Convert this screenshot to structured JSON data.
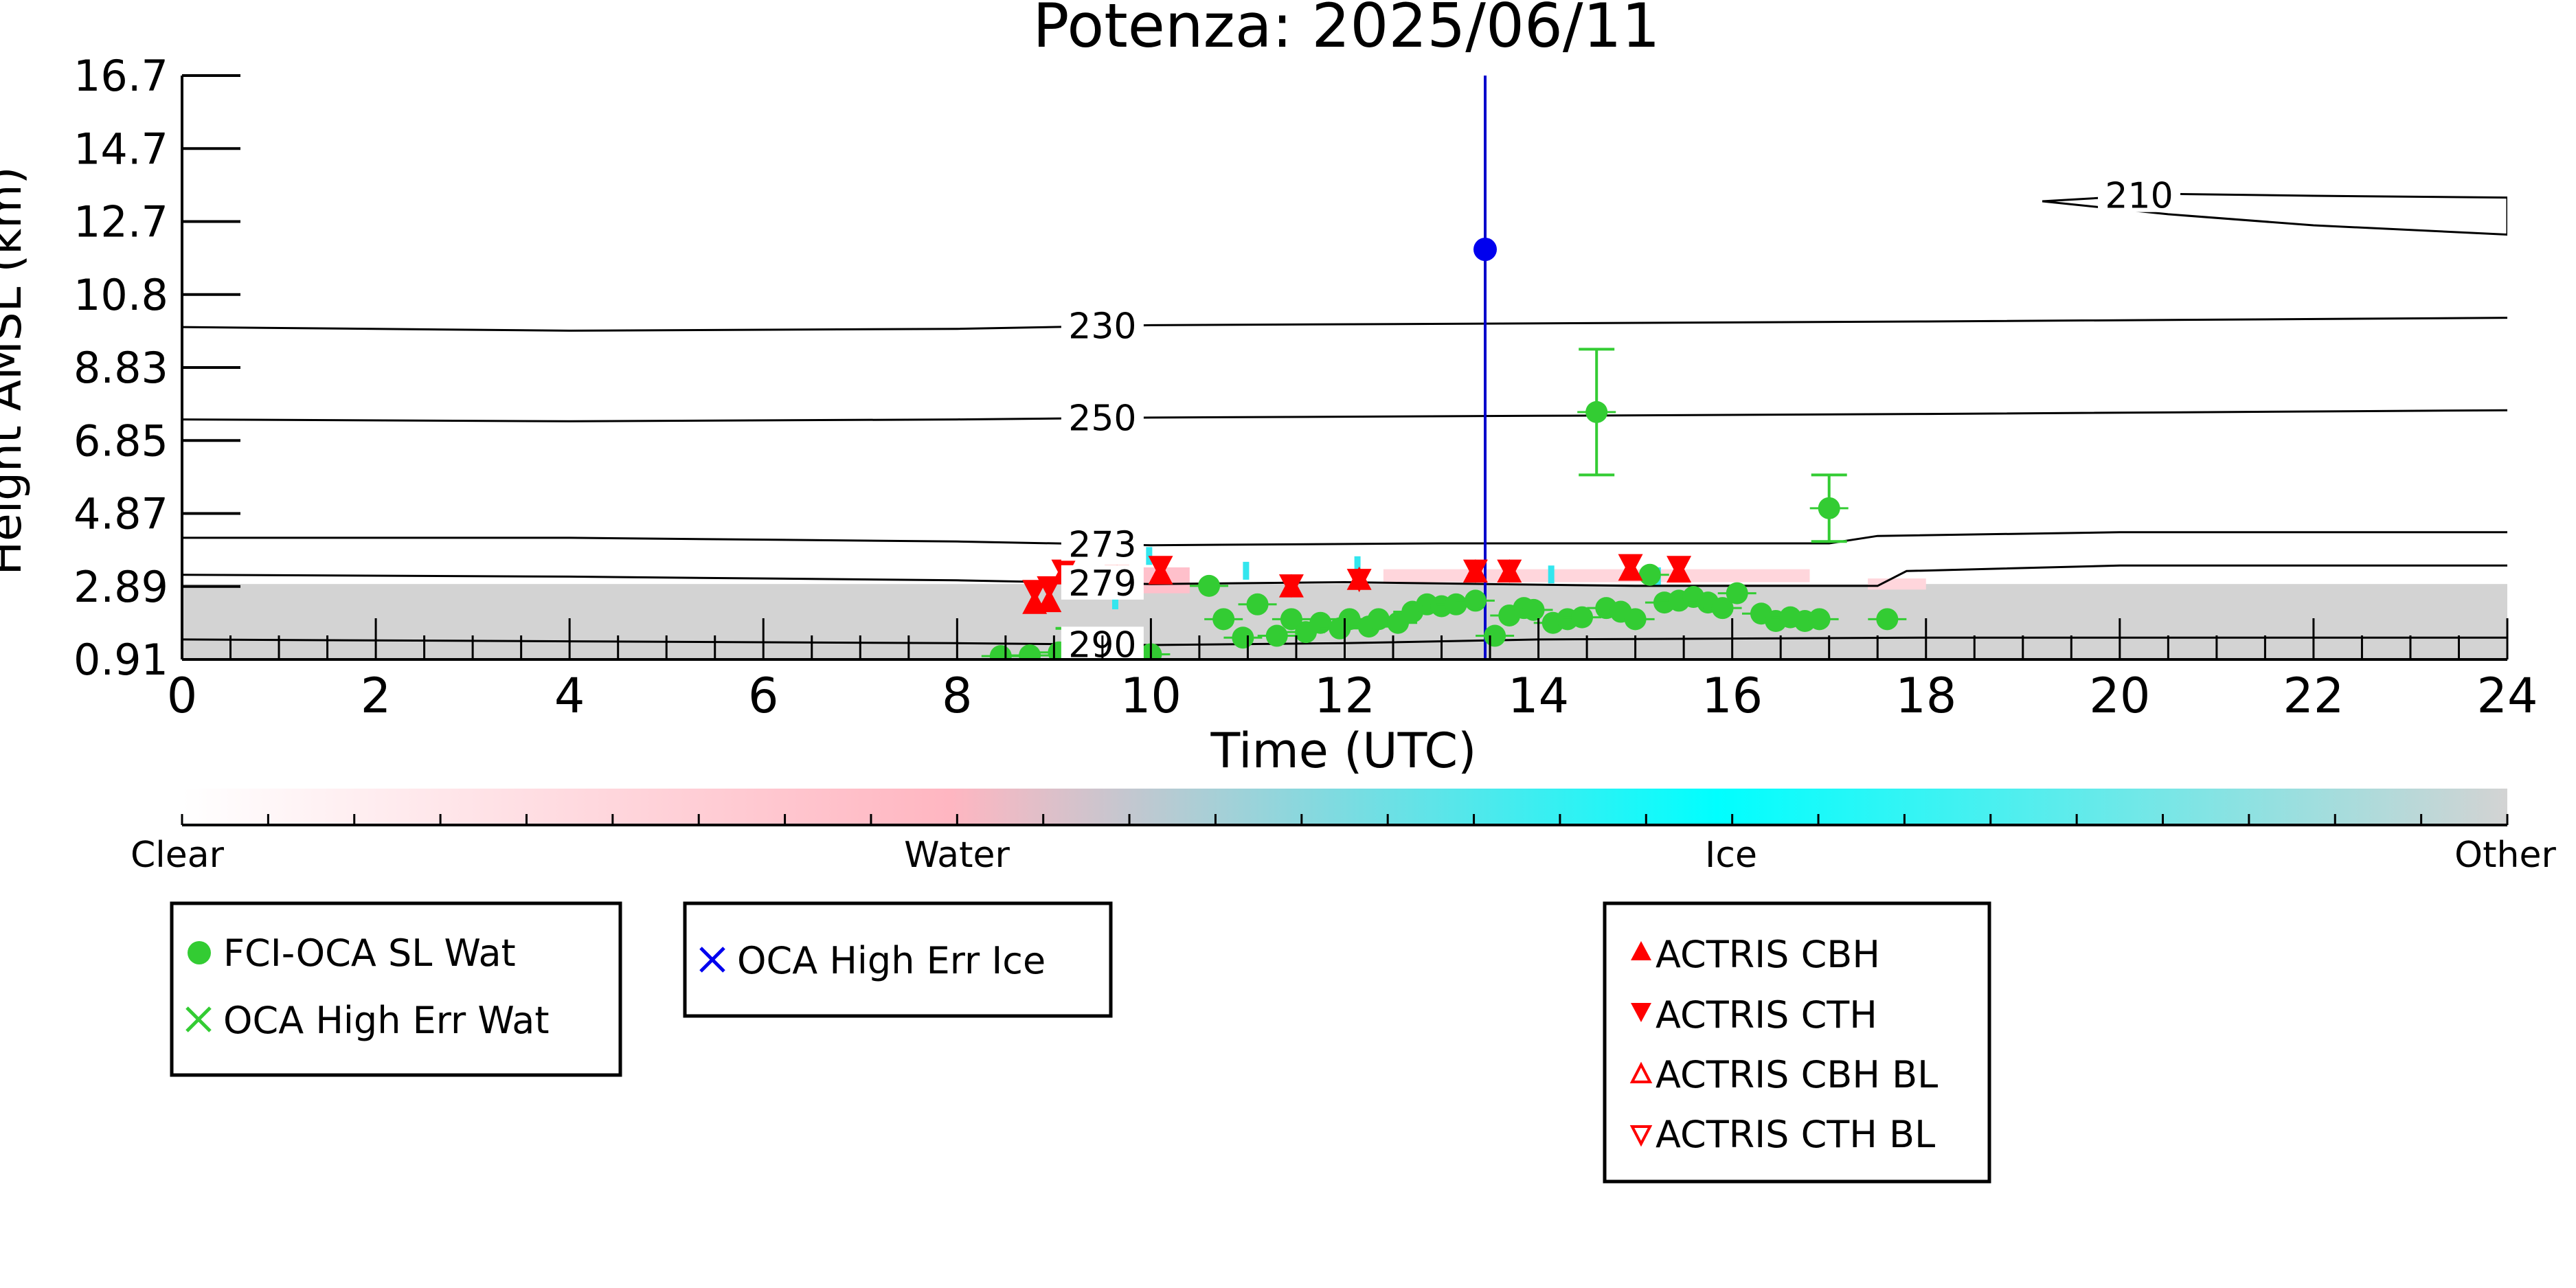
{
  "chart_data": {
    "type": "scatter",
    "title": "Potenza: 2025/06/11",
    "xlabel": "Time (UTC)",
    "ylabel": "Height AMSL (km)",
    "xlim": [
      0,
      24
    ],
    "ylim": [
      0.91,
      16.7
    ],
    "xticks": [
      "0",
      "2",
      "4",
      "6",
      "8",
      "10",
      "12",
      "14",
      "16",
      "18",
      "20",
      "22",
      "24"
    ],
    "yticks": [
      "0.91",
      "2.89",
      "4.87",
      "6.85",
      "8.83",
      "10.8",
      "12.7",
      "14.7",
      "16.7"
    ],
    "colorbar": {
      "labels": [
        "Clear",
        "Water",
        "Ice",
        "Other"
      ],
      "colors": [
        "#ffffff",
        "#ffb6c1",
        "#00ffff",
        "#d3d3d3"
      ]
    },
    "contours": [
      {
        "label": "210",
        "label_x": 20.2,
        "points": [
          [
            19.2,
            13.3
          ],
          [
            20.5,
            13.5
          ],
          [
            22,
            13.45
          ],
          [
            24,
            13.4
          ],
          [
            24,
            12.4
          ],
          [
            22,
            12.65
          ],
          [
            20.5,
            12.95
          ],
          [
            19.2,
            13.3
          ]
        ]
      },
      {
        "label": "230",
        "label_x": 9.5,
        "points": [
          [
            0,
            9.9
          ],
          [
            4,
            9.8
          ],
          [
            8,
            9.85
          ],
          [
            10,
            9.95
          ],
          [
            14,
            10.0
          ],
          [
            18,
            10.05
          ],
          [
            24,
            10.15
          ]
        ]
      },
      {
        "label": "250",
        "label_x": 9.5,
        "points": [
          [
            0,
            7.4
          ],
          [
            4,
            7.35
          ],
          [
            8,
            7.4
          ],
          [
            10,
            7.45
          ],
          [
            14,
            7.5
          ],
          [
            18,
            7.55
          ],
          [
            24,
            7.65
          ]
        ]
      },
      {
        "label": "273",
        "label_x": 9.5,
        "points": [
          [
            0,
            4.2
          ],
          [
            4,
            4.2
          ],
          [
            8,
            4.1
          ],
          [
            10,
            4.0
          ],
          [
            13,
            4.05
          ],
          [
            17,
            4.05
          ],
          [
            17.5,
            4.25
          ],
          [
            20,
            4.35
          ],
          [
            24,
            4.35
          ]
        ]
      },
      {
        "label": "279",
        "label_x": 9.5,
        "points": [
          [
            0,
            3.2
          ],
          [
            4,
            3.15
          ],
          [
            8,
            3.05
          ],
          [
            10,
            2.95
          ],
          [
            12,
            3.0
          ],
          [
            15,
            2.9
          ],
          [
            17.5,
            2.9
          ],
          [
            17.8,
            3.3
          ],
          [
            20,
            3.45
          ],
          [
            24,
            3.45
          ]
        ]
      },
      {
        "label": "290",
        "label_x": 9.5,
        "points": [
          [
            0,
            1.45
          ],
          [
            4,
            1.4
          ],
          [
            8,
            1.35
          ],
          [
            10,
            1.3
          ],
          [
            12,
            1.35
          ],
          [
            14,
            1.45
          ],
          [
            18,
            1.5
          ],
          [
            24,
            1.5
          ]
        ]
      }
    ],
    "series": [
      {
        "name": "FCI-OCA SL Wat",
        "color": "#33cc33",
        "marker": "circle",
        "points": [
          [
            8.45,
            1.0
          ],
          [
            8.75,
            1.02
          ],
          [
            9.05,
            1.1
          ],
          [
            9.25,
            1.05
          ],
          [
            9.55,
            1.2
          ],
          [
            10.0,
            1.05
          ],
          [
            10.6,
            2.9
          ],
          [
            10.75,
            2.0
          ],
          [
            10.95,
            1.5
          ],
          [
            11.1,
            2.4
          ],
          [
            11.3,
            1.55
          ],
          [
            11.45,
            2.0
          ],
          [
            11.6,
            1.65
          ],
          [
            11.75,
            1.9
          ],
          [
            11.95,
            1.75
          ],
          [
            12.05,
            2.0
          ],
          [
            12.25,
            1.8
          ],
          [
            12.35,
            2.0
          ],
          [
            12.55,
            1.9
          ],
          [
            12.7,
            2.2
          ],
          [
            12.85,
            2.4
          ],
          [
            13.0,
            2.35
          ],
          [
            13.15,
            2.4
          ],
          [
            13.35,
            2.5
          ],
          [
            13.55,
            1.55
          ],
          [
            13.7,
            2.1
          ],
          [
            13.85,
            2.3
          ],
          [
            13.95,
            2.25
          ],
          [
            14.15,
            1.9
          ],
          [
            14.3,
            2.0
          ],
          [
            14.45,
            2.05
          ],
          [
            14.6,
            7.6
          ],
          [
            14.7,
            2.3
          ],
          [
            14.85,
            2.2
          ],
          [
            15.0,
            2.0
          ],
          [
            15.15,
            3.2
          ],
          [
            15.3,
            2.45
          ],
          [
            15.45,
            2.5
          ],
          [
            15.6,
            2.6
          ],
          [
            15.75,
            2.45
          ],
          [
            15.9,
            2.3
          ],
          [
            16.05,
            2.7
          ],
          [
            16.3,
            2.15
          ],
          [
            16.45,
            1.95
          ],
          [
            16.6,
            2.05
          ],
          [
            16.75,
            1.95
          ],
          [
            16.9,
            2.0
          ],
          [
            17.0,
            5.0
          ],
          [
            17.6,
            2.0
          ]
        ],
        "error_bars": [
          {
            "x": 14.6,
            "low": 5.9,
            "high": 9.3
          },
          {
            "x": 17.0,
            "low": 4.1,
            "high": 5.9
          },
          {
            "x": 9.2,
            "low": 0.95,
            "high": 1.75
          }
        ]
      },
      {
        "name": "OCA High Err Wat",
        "color": "#33cc33",
        "marker": "x",
        "points": []
      },
      {
        "name": "OCA High Err Ice",
        "color": "#0000ee",
        "marker": "circle",
        "points": [
          [
            13.45,
            12.0
          ]
        ]
      },
      {
        "name": "ACTRIS CBH",
        "color": "#ff0000",
        "marker": "triangle-up",
        "points": [
          [
            8.8,
            2.4
          ],
          [
            8.95,
            2.45
          ],
          [
            9.1,
            3.2
          ],
          [
            9.65,
            3.1
          ],
          [
            10.1,
            3.2
          ],
          [
            11.45,
            2.85
          ],
          [
            12.15,
            3.05
          ],
          [
            13.35,
            3.25
          ],
          [
            13.7,
            3.25
          ],
          [
            14.95,
            3.3
          ],
          [
            15.45,
            3.25
          ]
        ]
      },
      {
        "name": "ACTRIS CTH",
        "color": "#ff0000",
        "marker": "triangle-down",
        "points": [
          [
            8.8,
            2.8
          ],
          [
            8.95,
            2.9
          ],
          [
            9.1,
            3.35
          ],
          [
            9.65,
            3.2
          ],
          [
            10.1,
            3.45
          ],
          [
            11.45,
            2.95
          ],
          [
            12.15,
            3.1
          ],
          [
            13.35,
            3.35
          ],
          [
            13.7,
            3.35
          ],
          [
            14.95,
            3.5
          ],
          [
            15.45,
            3.45
          ]
        ]
      },
      {
        "name": "ACTRIS CBH BL",
        "color": "#ff0000",
        "marker": "triangle-up-open",
        "points": []
      },
      {
        "name": "ACTRIS CTH BL",
        "color": "#ff0000",
        "marker": "triangle-down-open",
        "points": []
      }
    ],
    "vertical_line": {
      "x": 13.45,
      "color": "#0000cc"
    },
    "legends": [
      {
        "entries": [
          "FCI-OCA SL Wat",
          "OCA High Err Wat"
        ]
      },
      {
        "entries": [
          "OCA High Err Ice"
        ]
      },
      {
        "entries": [
          "ACTRIS CBH",
          "ACTRIS CTH",
          "ACTRIS CBH BL",
          "ACTRIS CTH BL"
        ]
      }
    ]
  }
}
